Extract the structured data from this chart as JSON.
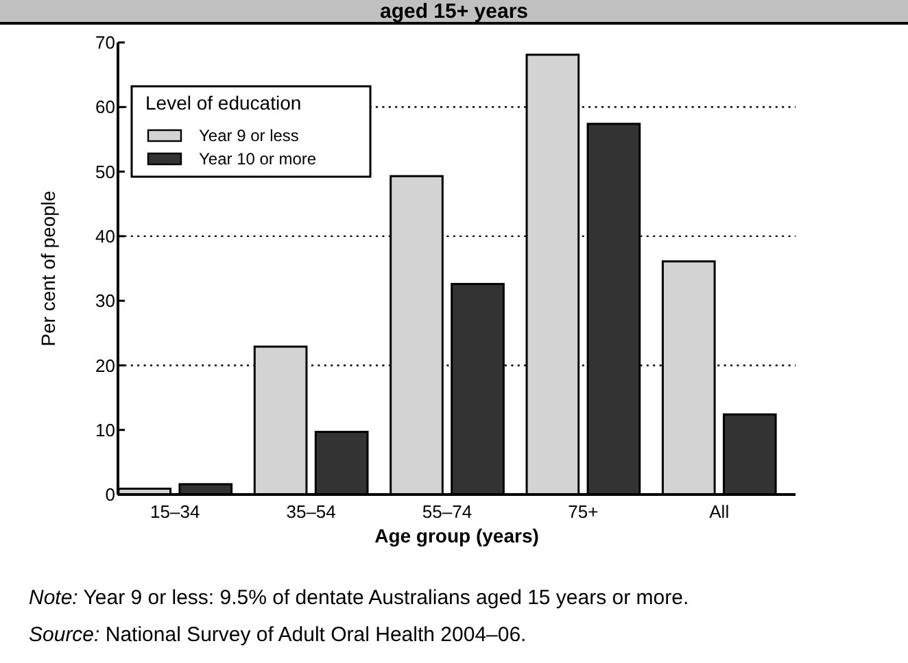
{
  "chart_data": {
    "type": "bar",
    "title": "aged 15+ years",
    "xlabel": "Age group (years)",
    "ylabel": "Per cent of people",
    "legend_title": "Level of education",
    "categories": [
      "15–34",
      "35–54",
      "55–74",
      "75+",
      "All"
    ],
    "series": [
      {
        "name": "Year 9 or less",
        "color": "#d3d3d3",
        "values": [
          0.9,
          22.9,
          49.3,
          68.1,
          36.1
        ]
      },
      {
        "name": "Year 10 or more",
        "color": "#333333",
        "values": [
          1.6,
          9.7,
          32.6,
          57.4,
          12.4
        ]
      }
    ],
    "ylim": [
      0,
      70
    ],
    "yticks": [
      0,
      10,
      20,
      30,
      40,
      50,
      60,
      70
    ],
    "grid": "y",
    "legend": "top left",
    "annotations": [
      "Note: Year 9 or less: 9.5% of dentate Australians aged 15 years or more.",
      "Source: National Survey of Adult Oral Health 2004–06."
    ]
  }
}
